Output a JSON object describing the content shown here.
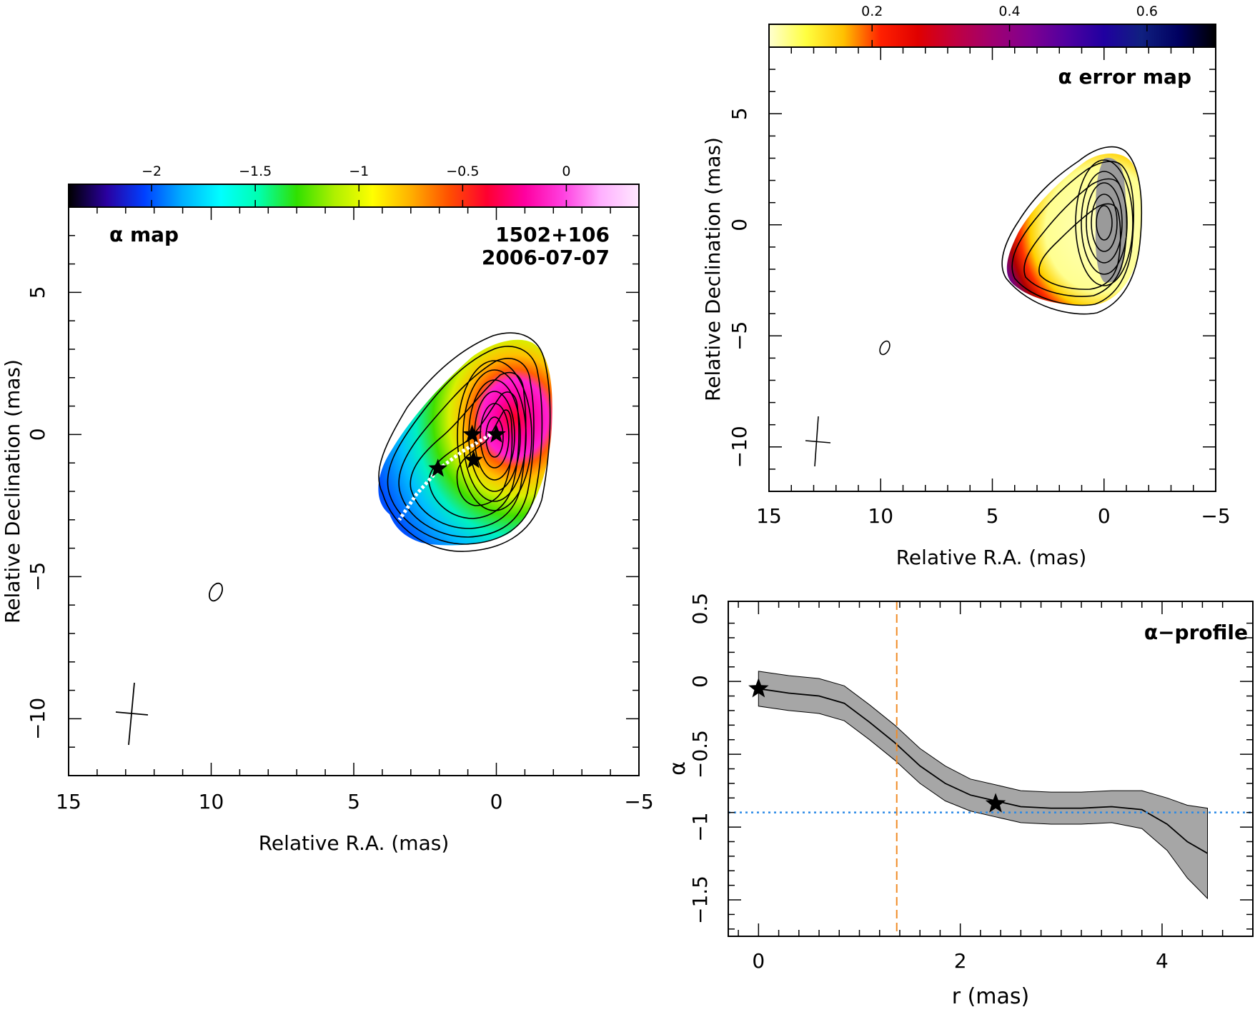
{
  "chart_data": [
    {
      "id": "alpha_map",
      "type": "heatmap",
      "title": "α map",
      "source": "1502+106",
      "epoch": "2006-07-07",
      "xlabel": "Relative R.A. (mas)",
      "ylabel": "Relative Declination (mas)",
      "xlim": [
        15,
        -5
      ],
      "ylim": [
        -12,
        8
      ],
      "xticks": [
        15,
        10,
        5,
        0,
        -5
      ],
      "xtick_labels": [
        "15",
        "10",
        "5",
        "0",
        "−5"
      ],
      "yticks": [
        -10,
        -5,
        0,
        5
      ],
      "ytick_labels": [
        "−10",
        "−5",
        "0",
        "5"
      ],
      "colorbar": {
        "range": [
          -2.4,
          0.35
        ],
        "ticks": [
          -2,
          -1.5,
          -1,
          -0.5,
          0
        ],
        "tick_labels": [
          "−2",
          "−1.5",
          "−1",
          "−0.5",
          "0"
        ],
        "colormap": [
          "#000000",
          "#2a00a0",
          "#0040ff",
          "#00b0ff",
          "#00ffff",
          "#00ffb0",
          "#30e000",
          "#b0f000",
          "#ffff00",
          "#ffb000",
          "#ff5000",
          "#ff0030",
          "#ff00a0",
          "#ff40e0",
          "#ffb0ff",
          "#ffe8ff"
        ]
      },
      "stars": [
        {
          "x": 0.0,
          "y": 0.0
        },
        {
          "x": 0.85,
          "y": 0.0
        },
        {
          "x": 0.8,
          "y": -0.9
        },
        {
          "x": 2.05,
          "y": -1.2
        }
      ],
      "ridge_line": [
        [
          0.2,
          0.0
        ],
        [
          1.2,
          -0.6
        ],
        [
          2.0,
          -1.2
        ],
        [
          2.8,
          -2.1
        ],
        [
          3.4,
          -3.0
        ]
      ],
      "beam_ellipse_label": "0"
    },
    {
      "id": "alpha_error_map",
      "type": "heatmap",
      "title": "α error map",
      "xlabel": "Relative R.A. (mas)",
      "ylabel": "Relative Declination (mas)",
      "xlim": [
        15,
        -5
      ],
      "ylim": [
        -12,
        8
      ],
      "xticks": [
        15,
        10,
        5,
        0,
        -5
      ],
      "xtick_labels": [
        "15",
        "10",
        "5",
        "0",
        "−5"
      ],
      "yticks": [
        -10,
        -5,
        0,
        5
      ],
      "ytick_labels": [
        "−10",
        "−5",
        "0",
        "5"
      ],
      "colorbar": {
        "range": [
          0.05,
          0.7
        ],
        "ticks": [
          0.2,
          0.4,
          0.6
        ],
        "tick_labels": [
          "0.2",
          "0.4",
          "0.6"
        ],
        "colormap": [
          "#ffffd0",
          "#ffff40",
          "#ffc000",
          "#ff2000",
          "#e00000",
          "#c00040",
          "#a00070",
          "#800090",
          "#5000a0",
          "#2000a0",
          "#102080",
          "#000060",
          "#000000"
        ]
      }
    },
    {
      "id": "alpha_profile",
      "type": "line",
      "title": "α−profile",
      "xlabel": "r (mas)",
      "ylabel": "α",
      "xlim": [
        -0.3,
        4.9
      ],
      "ylim": [
        -1.75,
        0.55
      ],
      "xticks": [
        0,
        2,
        4
      ],
      "xtick_labels": [
        "0",
        "2",
        "4"
      ],
      "yticks": [
        0.5,
        0,
        -0.5,
        -1,
        -1.5
      ],
      "ytick_labels": [
        "0.5",
        "0",
        "−0.5",
        "−1",
        "−1.5"
      ],
      "series": [
        {
          "x": [
            0,
            0.3,
            0.6,
            0.85,
            1.1,
            1.35,
            1.6,
            1.85,
            2.1,
            2.35,
            2.6,
            2.9,
            3.2,
            3.5,
            3.8,
            4.05,
            4.25,
            4.45
          ],
          "y": [
            -0.05,
            -0.08,
            -0.1,
            -0.15,
            -0.28,
            -0.42,
            -0.58,
            -0.7,
            -0.78,
            -0.82,
            -0.86,
            -0.87,
            -0.87,
            -0.86,
            -0.88,
            -0.98,
            -1.1,
            -1.18
          ],
          "err": [
            0.12,
            0.12,
            0.12,
            0.12,
            0.12,
            0.12,
            0.12,
            0.12,
            0.11,
            0.11,
            0.11,
            0.11,
            0.11,
            0.11,
            0.13,
            0.18,
            0.25,
            0.31
          ]
        }
      ],
      "stars": [
        {
          "x": 0.0,
          "y": -0.05
        },
        {
          "x": 2.35,
          "y": -0.84
        }
      ],
      "vline_x": 1.37,
      "hline_y": -0.9,
      "vline_color": "#f08c28",
      "hline_color": "#2a8ae6"
    }
  ]
}
